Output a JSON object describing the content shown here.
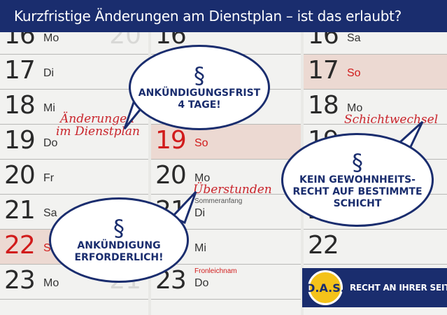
{
  "header": {
    "title": "Kurzfristige Änderungen am Dienstplan – ist das erlaubt?"
  },
  "col1": [
    {
      "num": "16",
      "day": "Mo",
      "ghost": "20",
      "hl": false,
      "red": false
    },
    {
      "num": "17",
      "day": "Di",
      "hl": false,
      "red": false
    },
    {
      "num": "18",
      "day": "Mi",
      "hl": false,
      "red": false
    },
    {
      "num": "19",
      "day": "Do",
      "hl": false,
      "red": false
    },
    {
      "num": "20",
      "day": "Fr",
      "hl": false,
      "red": false
    },
    {
      "num": "21",
      "day": "Sa",
      "hl": false,
      "red": false
    },
    {
      "num": "22",
      "day": "So",
      "hl": true,
      "red": true
    },
    {
      "num": "23",
      "day": "Mo",
      "ghost": "21",
      "hl": false,
      "red": false
    }
  ],
  "col2": [
    {
      "num": "16",
      "day": "",
      "hl": false,
      "red": false
    },
    {
      "num": "17",
      "day": "",
      "hl": false,
      "red": false
    },
    {
      "num": "18",
      "day": "Sa",
      "hl": false,
      "red": false
    },
    {
      "num": "19",
      "day": "So",
      "hl": true,
      "red": true
    },
    {
      "num": "20",
      "day": "Mo",
      "hl": false,
      "red": false
    },
    {
      "num": "21",
      "day": "Di",
      "hl": false,
      "red": false,
      "note": "Sommeranfang"
    },
    {
      "num": "22",
      "day": "Mi",
      "hl": false,
      "red": false
    },
    {
      "num": "23",
      "day": "Do",
      "hl": false,
      "red": false,
      "note": "Fronleichnam",
      "noteRed": true
    }
  ],
  "col3": [
    {
      "num": "16",
      "day": "Sa",
      "hl": false,
      "red": false
    },
    {
      "num": "17",
      "day": "So",
      "hl": true,
      "red": false,
      "dayRed": true
    },
    {
      "num": "18",
      "day": "Mo",
      "hl": false,
      "red": false
    },
    {
      "num": "19",
      "day": "",
      "hl": false,
      "red": false
    },
    {
      "num": "20",
      "day": "",
      "hl": false,
      "red": false
    },
    {
      "num": "21",
      "day": "",
      "hl": false,
      "red": false
    },
    {
      "num": "22",
      "day": "",
      "hl": false,
      "red": false
    },
    {
      "num": "",
      "day": "",
      "hl": false,
      "red": false
    }
  ],
  "handwriting": {
    "aenderungen_line1": "Änderungen",
    "aenderungen_line2": "im Dienstplan",
    "ueberstunden": "Überstunden",
    "schichtwechsel": "Schichtwechsel"
  },
  "bubbles": {
    "frist": {
      "symbol": "§",
      "line1": "ANKÜNDIGUNGSFRIST",
      "line2": "4 TAGE!"
    },
    "gewohnheit": {
      "symbol": "§",
      "line1": "KEIN GEWOHNHEITS-",
      "line2": "RECHT AUF BESTIMMTE",
      "line3": "SCHICHT"
    },
    "ankuendigung": {
      "symbol": "§",
      "line1": "ANKÜNDIGUNG",
      "line2": "ERFORDERLICH!"
    }
  },
  "brand": {
    "logo": "D.A.S.",
    "tagline": "RECHT AN IHRER SEITE"
  },
  "colors": {
    "navy": "#1a2d6e",
    "red": "#d11b1b",
    "gold": "#f4c21a"
  }
}
